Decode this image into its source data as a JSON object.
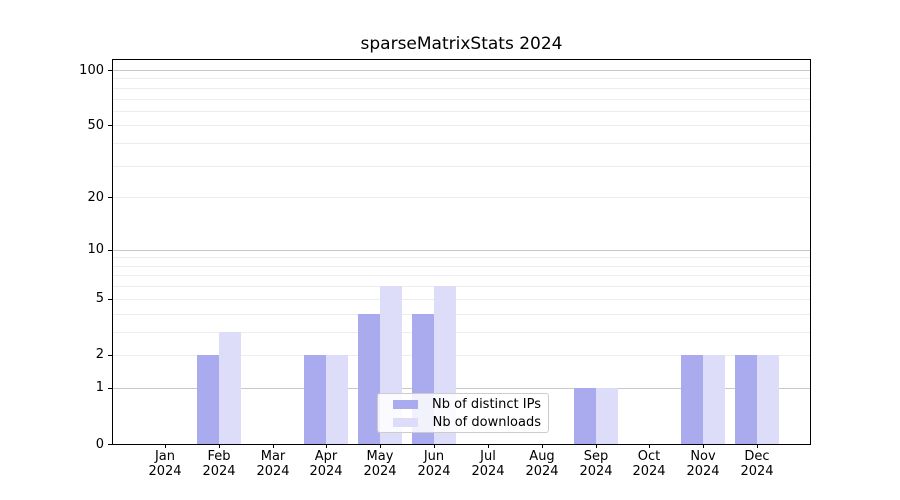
{
  "title": "sparseMatrixStats 2024",
  "legend": {
    "items": [
      {
        "label": "Nb of distinct IPs",
        "color": "#aaaaee"
      },
      {
        "label": "Nb of downloads",
        "color": "#ddddfa"
      }
    ]
  },
  "chart_data": {
    "type": "bar",
    "title": "sparseMatrixStats 2024",
    "categories": [
      "Jan",
      "Feb",
      "Mar",
      "Apr",
      "May",
      "Jun",
      "Jul",
      "Aug",
      "Sep",
      "Oct",
      "Nov",
      "Dec"
    ],
    "x_year_label": "2024",
    "series": [
      {
        "name": "Nb of distinct IPs",
        "color": "#aaaaee",
        "values": [
          0,
          2,
          0,
          2,
          4,
          4,
          0,
          0,
          1,
          0,
          2,
          2
        ]
      },
      {
        "name": "Nb of downloads",
        "color": "#ddddfa",
        "values": [
          0,
          3,
          0,
          2,
          6,
          6,
          0,
          0,
          1,
          0,
          2,
          2
        ]
      }
    ],
    "y_axis": {
      "scale": "log10(1+x)",
      "tick_labels": [
        "0",
        "1",
        "2",
        "5",
        "10",
        "20",
        "50",
        "100"
      ],
      "tick_values": [
        0,
        1,
        2,
        5,
        10,
        20,
        50,
        100
      ],
      "major_grid_values": [
        1,
        10,
        100
      ],
      "minor_grid_values": [
        2,
        3,
        4,
        5,
        6,
        7,
        8,
        9,
        20,
        30,
        40,
        50,
        60,
        70,
        80,
        90
      ],
      "top_value": 100
    },
    "grid": true,
    "legend_position": "lower center"
  },
  "colors": {
    "background": "#ffffff",
    "frame": "#000000",
    "grid_major": "#c8c8c8",
    "grid_minor": "#ededed",
    "text": "#000000",
    "legend_border": "#cccccc",
    "legend_bg": "rgba(255,255,255,0.85)"
  }
}
